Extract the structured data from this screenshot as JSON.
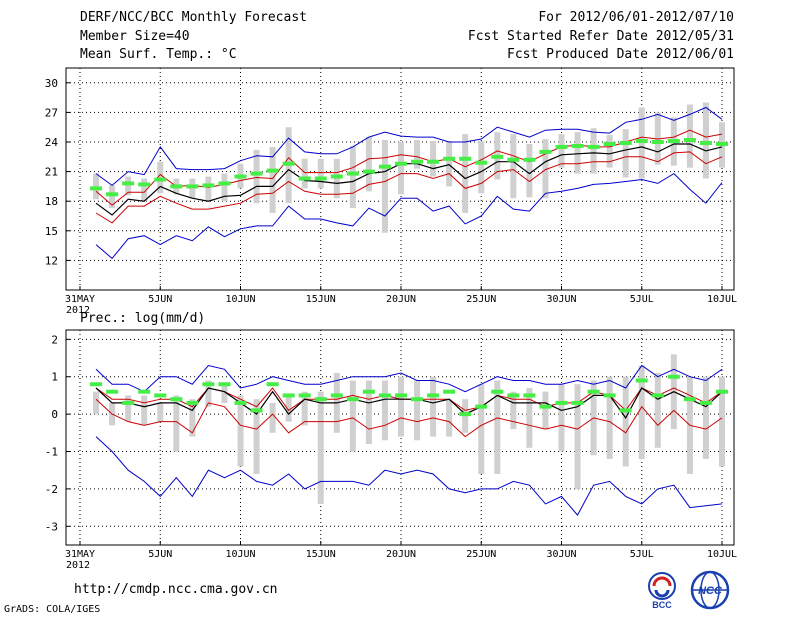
{
  "header": {
    "title": "DERF/NCC/BCC Monthly Forecast",
    "member_size": "Member Size=40",
    "variable": "Mean Surf. Temp.: °C",
    "period": "For 2012/06/01-2012/07/10",
    "started": "Fcst Started Refer Date 2012/05/31",
    "produced": "Fcst Produced Date 2012/06/01"
  },
  "footer": {
    "url": "http://cmdp.ncc.cma.gov.cn",
    "credit": "GrADS: COLA/IGES",
    "logo_left_text": "BCC",
    "logo_right_text": "NCC"
  },
  "colors": {
    "envelope": "#0000cc",
    "mean": "#000000",
    "spread": "#cc0000",
    "bars": "#d0d0d0",
    "markers": "#44ee44",
    "grid": "#000000"
  },
  "chart_data": [
    {
      "type": "line",
      "title": "Mean Surf. Temp.: °C",
      "x_ticks": [
        "31MAY\n2012",
        "5JUN",
        "10JUN",
        "15JUN",
        "20JUN",
        "25JUN",
        "30JUN",
        "5JUL",
        "10JUL"
      ],
      "x_tick_days": [
        0,
        5,
        10,
        15,
        20,
        25,
        30,
        35,
        40
      ],
      "x_range": [
        0,
        40
      ],
      "ylim": [
        9,
        31.5
      ],
      "y_ticks": [
        12,
        15,
        18,
        21,
        24,
        27,
        30
      ],
      "days": [
        1,
        2,
        3,
        4,
        5,
        6,
        7,
        8,
        9,
        10,
        11,
        12,
        13,
        14,
        15,
        16,
        17,
        18,
        19,
        20,
        21,
        22,
        23,
        24,
        25,
        26,
        27,
        28,
        29,
        30,
        31,
        32,
        33,
        34,
        35,
        36,
        37,
        38,
        39,
        40
      ],
      "series": [
        {
          "name": "max",
          "values": [
            20.8,
            19.6,
            21.0,
            20.7,
            23.5,
            21.3,
            21.2,
            21.2,
            21.3,
            22.1,
            22.6,
            22.5,
            24.4,
            23.0,
            22.8,
            22.8,
            23.5,
            24.5,
            25.0,
            24.6,
            24.5,
            24.5,
            24.0,
            24.0,
            24.3,
            25.5,
            25.0,
            24.5,
            25.2,
            25.3,
            25.3,
            25.0,
            24.9,
            26.0,
            26.3,
            26.8,
            26.2,
            26.8,
            27.5,
            26.3
          ]
        },
        {
          "name": "upper",
          "values": [
            19.0,
            17.6,
            18.9,
            18.9,
            20.7,
            19.5,
            19.6,
            19.4,
            19.7,
            20.1,
            20.4,
            20.3,
            22.4,
            20.9,
            20.9,
            20.9,
            21.4,
            22.3,
            22.4,
            22.7,
            22.5,
            22.0,
            22.3,
            21.5,
            22.2,
            23.1,
            22.6,
            22.0,
            22.8,
            23.5,
            23.7,
            23.5,
            23.5,
            24.0,
            24.5,
            24.3,
            24.5,
            25.2,
            24.5,
            24.8
          ]
        },
        {
          "name": "mean",
          "values": [
            17.8,
            16.6,
            18.2,
            18.0,
            19.5,
            18.8,
            18.3,
            18.0,
            18.5,
            18.6,
            19.5,
            19.5,
            21.2,
            20.1,
            20.0,
            19.8,
            20.0,
            20.8,
            21.0,
            21.8,
            21.8,
            21.3,
            21.7,
            20.3,
            21.0,
            22.0,
            22.0,
            20.8,
            22.0,
            22.7,
            22.8,
            22.9,
            22.8,
            23.2,
            23.5,
            23.0,
            23.8,
            23.8,
            23.1,
            23.5
          ]
        },
        {
          "name": "lower",
          "values": [
            16.8,
            15.8,
            17.5,
            17.5,
            18.5,
            17.8,
            17.2,
            17.2,
            17.5,
            17.8,
            18.7,
            18.8,
            20.0,
            19.0,
            18.7,
            18.7,
            18.8,
            19.7,
            20.0,
            20.8,
            20.8,
            20.3,
            20.8,
            19.3,
            19.8,
            21.0,
            21.2,
            20.0,
            21.2,
            21.8,
            21.8,
            22.0,
            22.0,
            22.5,
            22.5,
            22.0,
            22.9,
            23.0,
            21.8,
            22.5
          ]
        },
        {
          "name": "min",
          "values": [
            13.6,
            12.2,
            14.2,
            14.5,
            13.6,
            14.5,
            14.0,
            15.4,
            14.4,
            15.2,
            15.5,
            15.5,
            17.5,
            16.2,
            16.2,
            15.8,
            15.5,
            17.3,
            16.5,
            18.3,
            18.3,
            17.0,
            17.5,
            15.7,
            16.5,
            18.5,
            17.2,
            17.0,
            18.8,
            19.0,
            19.3,
            19.7,
            19.8,
            20.0,
            20.2,
            19.8,
            20.8,
            19.2,
            17.8,
            19.9
          ]
        },
        {
          "name": "obs_bar_top",
          "values": [
            20.8,
            19.6,
            20.5,
            20.3,
            22.0,
            20.3,
            20.3,
            20.5,
            20.8,
            21.8,
            23.2,
            23.5,
            25.5,
            22.3,
            22.3,
            22.3,
            23.6,
            24.5,
            24.2,
            24.0,
            24.2,
            24.1,
            24.1,
            24.8,
            24.1,
            25.0,
            24.8,
            23.8,
            24.3,
            24.8,
            25.0,
            25.4,
            24.7,
            25.3,
            27.5,
            27.0,
            26.5,
            27.8,
            28.0,
            26.0
          ]
        },
        {
          "name": "obs_bar_bottom",
          "values": [
            18.2,
            17.3,
            18.6,
            18.0,
            18.8,
            18.7,
            18.3,
            18.0,
            18.0,
            19.3,
            17.8,
            16.8,
            17.8,
            19.3,
            19.3,
            18.3,
            17.3,
            19.0,
            14.8,
            18.7,
            21.3,
            20.5,
            19.5,
            16.8,
            18.8,
            20.2,
            18.3,
            18.4,
            18.3,
            21.4,
            20.8,
            20.8,
            21.4,
            20.4,
            20.3,
            21.7,
            21.6,
            21.4,
            20.3,
            21.4
          ]
        },
        {
          "name": "marker",
          "values": [
            19.3,
            18.7,
            19.8,
            19.7,
            20.2,
            19.5,
            19.5,
            19.6,
            19.8,
            20.5,
            20.8,
            21.1,
            21.8,
            20.3,
            20.3,
            20.5,
            20.8,
            21.0,
            21.5,
            21.8,
            22.0,
            22.0,
            22.3,
            22.3,
            21.9,
            22.5,
            22.2,
            22.2,
            23.0,
            23.5,
            23.6,
            23.5,
            23.8,
            23.9,
            24.1,
            24.0,
            24.1,
            24.2,
            23.9,
            23.8
          ]
        }
      ]
    },
    {
      "type": "line",
      "title": "Prec.: log(mm/d)",
      "x_ticks": [
        "31MAY\n2012",
        "5JUN",
        "10JUN",
        "15JUN",
        "20JUN",
        "25JUN",
        "30JUN",
        "5JUL",
        "10JUL"
      ],
      "x_tick_days": [
        0,
        5,
        10,
        15,
        20,
        25,
        30,
        35,
        40
      ],
      "x_range": [
        0,
        40
      ],
      "ylim": [
        -3.5,
        2.25
      ],
      "y_ticks": [
        -3,
        -2,
        -1,
        0,
        1,
        2
      ],
      "days": [
        1,
        2,
        3,
        4,
        5,
        6,
        7,
        8,
        9,
        10,
        11,
        12,
        13,
        14,
        15,
        16,
        17,
        18,
        19,
        20,
        21,
        22,
        23,
        24,
        25,
        26,
        27,
        28,
        29,
        30,
        31,
        32,
        33,
        34,
        35,
        36,
        37,
        38,
        39,
        40
      ],
      "series": [
        {
          "name": "max",
          "values": [
            1.2,
            0.8,
            0.8,
            0.6,
            1.0,
            1.0,
            0.8,
            1.3,
            1.2,
            0.7,
            0.8,
            1.0,
            0.9,
            0.8,
            0.8,
            0.9,
            1.0,
            1.0,
            1.0,
            1.1,
            0.9,
            0.9,
            0.8,
            0.6,
            0.8,
            1.0,
            0.9,
            0.9,
            0.8,
            0.8,
            0.9,
            0.8,
            0.9,
            0.7,
            1.3,
            1.0,
            1.2,
            1.0,
            0.9,
            1.2
          ]
        },
        {
          "name": "upper",
          "values": [
            0.7,
            0.4,
            0.4,
            0.3,
            0.4,
            0.4,
            0.2,
            0.7,
            0.6,
            0.4,
            0.2,
            0.7,
            0.1,
            0.4,
            0.4,
            0.4,
            0.5,
            0.4,
            0.5,
            0.4,
            0.4,
            0.4,
            0.4,
            0.1,
            0.2,
            0.5,
            0.4,
            0.4,
            0.2,
            0.3,
            0.3,
            0.6,
            0.5,
            0.1,
            0.7,
            0.5,
            0.7,
            0.5,
            0.3,
            0.6
          ]
        },
        {
          "name": "mean",
          "values": [
            0.7,
            0.3,
            0.3,
            0.2,
            0.3,
            0.3,
            0.1,
            0.7,
            0.6,
            0.3,
            0.0,
            0.6,
            0.0,
            0.4,
            0.3,
            0.3,
            0.4,
            0.3,
            0.4,
            0.4,
            0.4,
            0.3,
            0.4,
            0.0,
            0.2,
            0.5,
            0.3,
            0.3,
            0.3,
            0.1,
            0.2,
            0.5,
            0.5,
            -0.1,
            0.7,
            0.4,
            0.6,
            0.4,
            0.2,
            0.6
          ]
        },
        {
          "name": "lower",
          "values": [
            0.4,
            0.0,
            -0.2,
            -0.3,
            -0.2,
            -0.2,
            -0.5,
            0.3,
            0.2,
            -0.3,
            -0.4,
            0.0,
            -0.5,
            -0.2,
            -0.2,
            -0.2,
            -0.1,
            -0.4,
            -0.3,
            -0.1,
            -0.2,
            -0.1,
            -0.2,
            -0.6,
            -0.3,
            -0.1,
            -0.2,
            -0.3,
            -0.4,
            -0.3,
            -0.4,
            -0.1,
            -0.2,
            -0.5,
            0.2,
            -0.3,
            0.1,
            -0.3,
            -0.4,
            -0.1
          ]
        },
        {
          "name": "min",
          "values": [
            -0.6,
            -1.0,
            -1.5,
            -1.8,
            -2.2,
            -1.7,
            -2.2,
            -1.5,
            -1.7,
            -1.5,
            -1.8,
            -1.9,
            -1.6,
            -2.0,
            -1.8,
            -1.8,
            -1.8,
            -1.9,
            -1.5,
            -1.6,
            -1.5,
            -1.6,
            -2.0,
            -2.1,
            -2.0,
            -2.0,
            -1.8,
            -1.9,
            -2.4,
            -2.2,
            -2.7,
            -1.9,
            -1.8,
            -2.2,
            -2.4,
            -2.0,
            -1.9,
            -2.5,
            -2.45,
            -2.4
          ]
        },
        {
          "name": "obs_bar_top",
          "values": [
            0.6,
            0.3,
            0.5,
            0.5,
            0.3,
            0.5,
            0.4,
            0.9,
            0.8,
            0.5,
            0.4,
            0.3,
            0.5,
            0.6,
            0.6,
            1.1,
            0.9,
            0.9,
            0.9,
            1.0,
            0.9,
            1.0,
            0.4,
            0.4,
            0.8,
            0.9,
            0.6,
            0.7,
            0.6,
            0.8,
            0.8,
            0.9,
            1.0,
            1.0,
            1.3,
            1.1,
            1.6,
            1.0,
            1.0,
            1.0
          ]
        },
        {
          "name": "obs_bar_bottom",
          "values": [
            0.0,
            -0.3,
            -0.2,
            -0.3,
            -0.2,
            -1.0,
            -0.6,
            0.2,
            0.3,
            -1.4,
            -1.6,
            -0.5,
            -0.2,
            -0.3,
            -2.4,
            -0.5,
            -1.0,
            -0.8,
            -0.7,
            -0.6,
            -0.7,
            -0.6,
            -0.6,
            -0.5,
            -1.6,
            -1.6,
            -0.4,
            -0.9,
            -0.4,
            -1.0,
            -2.0,
            -1.1,
            -1.2,
            -1.4,
            -1.2,
            -0.9,
            -0.4,
            -1.6,
            -1.2,
            -1.4
          ]
        },
        {
          "name": "marker",
          "values": [
            0.8,
            0.6,
            0.3,
            0.6,
            0.5,
            0.4,
            0.3,
            0.8,
            0.8,
            0.3,
            0.1,
            0.8,
            0.5,
            0.5,
            0.4,
            0.5,
            0.4,
            0.6,
            0.5,
            0.5,
            0.4,
            0.5,
            0.6,
            0.0,
            0.2,
            0.6,
            0.5,
            0.5,
            0.2,
            0.3,
            0.3,
            0.6,
            0.5,
            0.1,
            0.9,
            0.5,
            1.0,
            0.4,
            0.3,
            0.6
          ]
        }
      ]
    }
  ]
}
